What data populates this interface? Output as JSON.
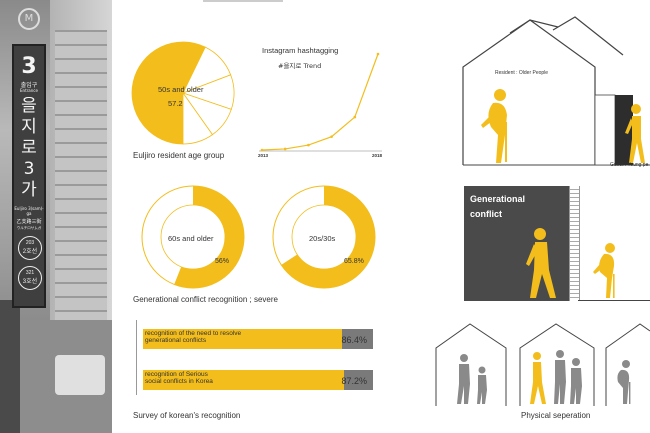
{
  "photo": {
    "line_number": "3",
    "exit_label": "출입구",
    "exit_label_en": "Entrance",
    "station_name_chars": [
      "을",
      "지",
      "로",
      "3",
      "가"
    ],
    "station_name_en": "Euljiro 3(sam)-ga",
    "station_name_cn": "乙支路三街",
    "station_name_jp": "ウルチロサムガ",
    "line2_code": "203",
    "line2_label": "2호선",
    "line3_code": "321",
    "line3_label": "3호선"
  },
  "age_chart": {
    "slice_label": "50s and older",
    "slice_value": "57.2",
    "caption": "Euljiro resident age group"
  },
  "trend_chart": {
    "title": "Instagram hashtagging",
    "subtitle": "#을지로 Trend",
    "x_start_label": "2013",
    "x_end_label": "2018"
  },
  "conflict_donuts": {
    "left_label": "60s and older",
    "left_value": "56%",
    "right_label": "20s/30s",
    "right_value": "65.8%",
    "caption": "Generational conflict recognition ; severe"
  },
  "survey": {
    "bars": [
      {
        "label": "recognition of the need to resolve\ngenerational conflicts",
        "value": "86.4%"
      },
      {
        "label": "recognition of Serious\nsocial conflicts in Korea",
        "value": "87.2%"
      }
    ],
    "caption": "Survey of korean's recognition"
  },
  "house_top": {
    "resident_label": "Resident : Older People",
    "guest_label": "Guest : Young pe"
  },
  "conflict_box": {
    "title": "Generational\nconflict"
  },
  "bottom_right": {
    "caption": "Physical seperation"
  },
  "chart_data": [
    {
      "type": "pie",
      "title": "",
      "categories": [
        "50s and older",
        "",
        "",
        "",
        ""
      ],
      "values": [
        57.2,
        12,
        11,
        10,
        9.8
      ],
      "colors": [
        "#f3bd1c",
        "#ffffff",
        "#ffffff",
        "#ffffff",
        "#ffffff"
      ]
    },
    {
      "type": "line",
      "title": "Instagram hashtagging",
      "subtitle": "#을지로 Trend",
      "x": [
        2013,
        2014,
        2015,
        2016,
        2017,
        2018
      ],
      "values": [
        0,
        150,
        700,
        1900,
        4700,
        13700
      ],
      "xlabel": "",
      "ylabel": "",
      "color": "#f3bd1c"
    },
    {
      "type": "pie",
      "title": "",
      "label": "60s and older",
      "values": [
        56,
        44
      ],
      "colors": [
        "#f3bd1c",
        "#ffffff"
      ]
    },
    {
      "type": "pie",
      "title": "",
      "label": "20s/30s",
      "values": [
        65.8,
        34.2
      ],
      "colors": [
        "#f3bd1c",
        "#ffffff"
      ]
    },
    {
      "type": "bar",
      "title": "Survey of korean's recognition",
      "categories": [
        "recognition of the need to resolve generational conflicts",
        "recognition of Serious social conflicts in Korea"
      ],
      "values": [
        86.4,
        87.2
      ],
      "ylim": [
        0,
        100
      ],
      "colors": [
        "#f3bd1c",
        "#7a7a7a"
      ]
    }
  ]
}
